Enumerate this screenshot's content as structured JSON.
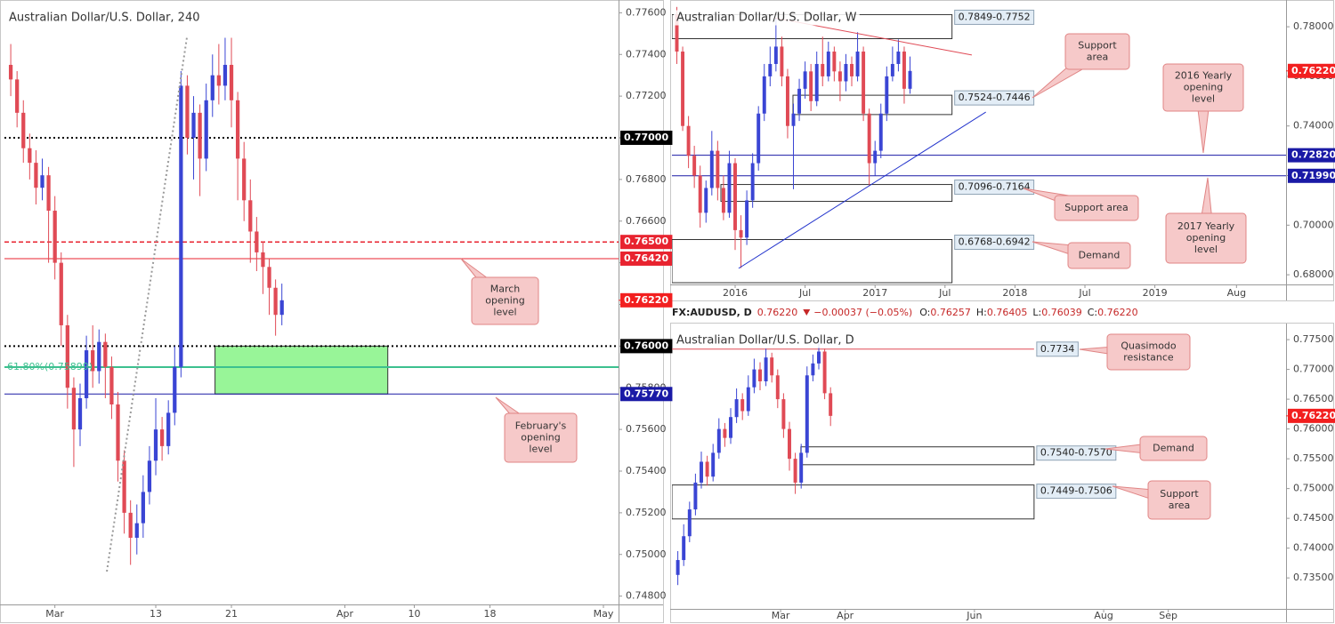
{
  "ticker": {
    "symbol": "FX:AUDUSD, D",
    "price": "0.76220",
    "change": "−0.00037 (−0.05%)",
    "ohlc": [
      {
        "key": "O:",
        "value": "0.76257"
      },
      {
        "key": "H:",
        "value": "0.76405"
      },
      {
        "key": "L:",
        "value": "0.76039"
      },
      {
        "key": "C:",
        "value": "0.76220"
      }
    ]
  },
  "chart_data": [
    {
      "type": "candlestick",
      "title": "Australian Dollar/U.S. Dollar, 240",
      "up_color": "#3a45d4",
      "down_color": "#e04a55",
      "x": [
        -3.5,
        -3,
        -2.5,
        -2,
        -1.5,
        -1,
        -0.5,
        0,
        0.5,
        1,
        1.5,
        2,
        2.5,
        3,
        3.5,
        4,
        4.5,
        5,
        5.5,
        6,
        6.5,
        7,
        7.5,
        8,
        8.5,
        9,
        9.5,
        10,
        10.5,
        11,
        11.5,
        12,
        12.5,
        13,
        13.5,
        14,
        14.5,
        15,
        15.5,
        16,
        16.5,
        17,
        17.5,
        18
      ],
      "open": [
        0.7735,
        0.7728,
        0.7712,
        0.7695,
        0.7688,
        0.7676,
        0.7682,
        0.7665,
        0.764,
        0.761,
        0.758,
        0.756,
        0.7575,
        0.7598,
        0.7588,
        0.7602,
        0.759,
        0.7572,
        0.7545,
        0.752,
        0.7508,
        0.7515,
        0.753,
        0.7545,
        0.756,
        0.7552,
        0.7568,
        0.759,
        0.7725,
        0.77,
        0.7712,
        0.769,
        0.7718,
        0.773,
        0.7725,
        0.7735,
        0.7718,
        0.769,
        0.767,
        0.7655,
        0.7645,
        0.7638,
        0.7628,
        0.7615
      ],
      "high": [
        0.7745,
        0.7732,
        0.7718,
        0.7702,
        0.7694,
        0.769,
        0.7686,
        0.7672,
        0.7645,
        0.7615,
        0.7585,
        0.7582,
        0.7605,
        0.761,
        0.7608,
        0.7606,
        0.7595,
        0.7578,
        0.755,
        0.7526,
        0.7524,
        0.7538,
        0.7552,
        0.7575,
        0.7566,
        0.7574,
        0.76,
        0.7732,
        0.773,
        0.772,
        0.7716,
        0.7726,
        0.774,
        0.7745,
        0.7748,
        0.7748,
        0.7722,
        0.7698,
        0.768,
        0.7662,
        0.765,
        0.7642,
        0.7632,
        0.763
      ],
      "low": [
        0.772,
        0.7705,
        0.7688,
        0.768,
        0.7668,
        0.767,
        0.764,
        0.7632,
        0.76,
        0.757,
        0.7542,
        0.7552,
        0.757,
        0.758,
        0.7582,
        0.7575,
        0.7565,
        0.7535,
        0.751,
        0.7495,
        0.75,
        0.7508,
        0.7524,
        0.7538,
        0.7545,
        0.7548,
        0.7562,
        0.7585,
        0.7692,
        0.768,
        0.7672,
        0.7684,
        0.771,
        0.7716,
        0.7718,
        0.7705,
        0.767,
        0.766,
        0.764,
        0.7636,
        0.7625,
        0.7615,
        0.7605,
        0.761
      ],
      "close": [
        0.7728,
        0.7712,
        0.7695,
        0.7688,
        0.7676,
        0.7682,
        0.7665,
        0.764,
        0.761,
        0.758,
        0.756,
        0.7575,
        0.7598,
        0.7588,
        0.7602,
        0.759,
        0.7572,
        0.7545,
        0.752,
        0.7508,
        0.7515,
        0.753,
        0.7545,
        0.756,
        0.7552,
        0.7568,
        0.759,
        0.7725,
        0.77,
        0.7712,
        0.769,
        0.7718,
        0.773,
        0.7725,
        0.7735,
        0.7718,
        0.769,
        0.767,
        0.7655,
        0.7645,
        0.7638,
        0.7628,
        0.7615,
        0.7622
      ],
      "xlim": [
        -4,
        44.7
      ],
      "xticks": [
        {
          "value": 0,
          "label": "Mar"
        },
        {
          "value": 8,
          "label": "13"
        },
        {
          "value": 14,
          "label": "21"
        },
        {
          "value": 23,
          "label": "Apr"
        },
        {
          "value": 28.5,
          "label": "10"
        },
        {
          "value": 34.5,
          "label": "18"
        },
        {
          "value": 43.5,
          "label": "May"
        }
      ],
      "ylim": [
        0.7476,
        0.7764
      ],
      "yticks": [
        {
          "value": 0.776,
          "label": "0.77600"
        },
        {
          "value": 0.774,
          "label": "0.77400"
        },
        {
          "value": 0.772,
          "label": "0.77200"
        },
        {
          "value": 0.77,
          "label": "0.77000"
        },
        {
          "value": 0.768,
          "label": "0.76800"
        },
        {
          "value": 0.766,
          "label": "0.76600"
        },
        {
          "value": 0.764,
          "label": "0.76400"
        },
        {
          "value": 0.762,
          "label": "0.76200"
        },
        {
          "value": 0.76,
          "label": "0.76000"
        },
        {
          "value": 0.758,
          "label": "0.75800"
        },
        {
          "value": 0.756,
          "label": "0.75600"
        },
        {
          "value": 0.754,
          "label": "0.75400"
        },
        {
          "value": 0.752,
          "label": "0.75200"
        },
        {
          "value": 0.75,
          "label": "0.75000"
        },
        {
          "value": 0.748,
          "label": "0.74800"
        }
      ],
      "zones": [
        {
          "high": 0.76,
          "low": 0.7577,
          "x": [
            12.7,
            26.4
          ],
          "color": "#98f598"
        }
      ],
      "levels": [
        {
          "value": 0.77,
          "label": "0.77000",
          "color": "#000000",
          "style": "dotted"
        },
        {
          "value": 0.765,
          "label": "0.76500",
          "color": "#e8232f",
          "style": "dashed"
        },
        {
          "value": 0.7642,
          "label": "0.76420",
          "color": "#e8232f",
          "style": "solid"
        },
        {
          "value": 0.76,
          "label": "0.76000",
          "color": "#000000",
          "style": "dotted"
        },
        {
          "value": 0.7577,
          "label": "0.75770",
          "color": "#1a1aa6",
          "style": "solid"
        }
      ],
      "fib": {
        "value": 0.75899,
        "label": "61.80%(0.75899)",
        "color": "#3cc08f"
      },
      "trendlines": [
        {
          "x": [
            4.12,
            10.47
          ],
          "y": [
            0.74918,
            0.77482
          ],
          "color": "#999999",
          "style": "dotted"
        }
      ],
      "last": {
        "value": 0.7622,
        "label": "0.76220",
        "color": "#f21f1f"
      },
      "callouts": [
        {
          "lines": [
            "March",
            "opening",
            "level"
          ]
        },
        {
          "lines": [
            "February's",
            "opening",
            "level"
          ]
        }
      ]
    },
    {
      "type": "candlestick",
      "title": "Australian Dollar/U.S. Dollar, W",
      "up_color": "#3a45d4",
      "down_color": "#e04a55",
      "x": [
        -5,
        -4.5,
        -4,
        -3.5,
        -3,
        -2.5,
        -2,
        -1.5,
        -1,
        -0.5,
        0,
        0.5,
        1,
        1.5,
        2,
        2.5,
        3,
        3.5,
        4,
        4.5,
        5,
        5.5,
        6,
        6.5,
        7,
        7.5,
        8,
        8.5,
        9,
        9.5,
        10,
        10.5,
        11,
        11.5,
        12,
        12.5,
        13,
        13.5,
        14,
        14.5,
        15
      ],
      "open": [
        0.785,
        0.77,
        0.74,
        0.728,
        0.72,
        0.705,
        0.715,
        0.73,
        0.715,
        0.705,
        0.725,
        0.698,
        0.695,
        0.71,
        0.725,
        0.745,
        0.76,
        0.765,
        0.772,
        0.76,
        0.74,
        0.745,
        0.755,
        0.762,
        0.75,
        0.765,
        0.76,
        0.77,
        0.762,
        0.758,
        0.765,
        0.76,
        0.77,
        0.745,
        0.725,
        0.73,
        0.745,
        0.76,
        0.765,
        0.77,
        0.755
      ],
      "high": [
        0.788,
        0.772,
        0.744,
        0.732,
        0.724,
        0.718,
        0.738,
        0.734,
        0.72,
        0.73,
        0.727,
        0.704,
        0.714,
        0.729,
        0.748,
        0.765,
        0.772,
        0.7835,
        0.776,
        0.763,
        0.749,
        0.759,
        0.766,
        0.765,
        0.77,
        0.776,
        0.774,
        0.772,
        0.766,
        0.769,
        0.768,
        0.7778,
        0.772,
        0.747,
        0.734,
        0.749,
        0.764,
        0.772,
        0.7749,
        0.772,
        0.768
      ],
      "low": [
        0.765,
        0.738,
        0.723,
        0.715,
        0.699,
        0.701,
        0.712,
        0.71,
        0.702,
        0.703,
        0.69,
        0.6827,
        0.692,
        0.707,
        0.722,
        0.742,
        0.756,
        0.762,
        0.756,
        0.735,
        0.7145,
        0.742,
        0.751,
        0.746,
        0.748,
        0.756,
        0.758,
        0.758,
        0.75,
        0.754,
        0.756,
        0.758,
        0.742,
        0.716,
        0.72,
        0.727,
        0.742,
        0.758,
        0.762,
        0.749,
        0.753
      ],
      "close": [
        0.77,
        0.74,
        0.728,
        0.72,
        0.705,
        0.715,
        0.73,
        0.715,
        0.705,
        0.725,
        0.698,
        0.695,
        0.71,
        0.725,
        0.745,
        0.76,
        0.765,
        0.772,
        0.76,
        0.74,
        0.745,
        0.755,
        0.762,
        0.75,
        0.765,
        0.76,
        0.77,
        0.762,
        0.758,
        0.765,
        0.76,
        0.77,
        0.745,
        0.725,
        0.73,
        0.745,
        0.76,
        0.765,
        0.77,
        0.755,
        0.7622
      ],
      "xlim": [
        -5.42,
        47.25
      ],
      "xticks": [
        {
          "value": 0,
          "label": "2016"
        },
        {
          "value": 6,
          "label": "Jul"
        },
        {
          "value": 12,
          "label": "2017"
        },
        {
          "value": 18,
          "label": "Jul"
        },
        {
          "value": 24,
          "label": "2018"
        },
        {
          "value": 30,
          "label": "Jul"
        },
        {
          "value": 36,
          "label": "2019"
        },
        {
          "value": 43,
          "label": "Aug"
        }
      ],
      "ylim": [
        0.6761,
        0.789
      ],
      "yticks": [
        {
          "value": 0.78,
          "label": "0.78000"
        },
        {
          "value": 0.76,
          "label": "0.76000"
        },
        {
          "value": 0.74,
          "label": "0.74000"
        },
        {
          "value": 0.72,
          "label": "0.72000"
        },
        {
          "value": 0.7,
          "label": "0.70000"
        },
        {
          "value": 0.68,
          "label": "0.68000"
        }
      ],
      "zones": [
        {
          "high": 0.7849,
          "low": 0.7752,
          "x": [
            -5.42,
            18.6
          ],
          "label": "0.7849-0.7752"
        },
        {
          "high": 0.7524,
          "low": 0.7446,
          "x": [
            4.96,
            18.6
          ],
          "label": "0.7524-0.7446"
        },
        {
          "high": 0.7164,
          "low": 0.7096,
          "x": [
            -1.22,
            18.6
          ],
          "label": "0.7096-0.7164"
        },
        {
          "high": 0.6942,
          "low": 0.6768,
          "x": [
            -5.42,
            18.6
          ],
          "label": "0.6768-0.6942"
        }
      ],
      "levels": [
        {
          "value": 0.7282,
          "label": "0.72820",
          "color": "#1a1aa6",
          "style": "solid"
        },
        {
          "value": 0.7199,
          "label": "0.71990",
          "color": "#1a1aa6",
          "style": "solid"
        }
      ],
      "trendlines": [
        {
          "x": [
            3.36,
            20.3
          ],
          "y": [
            0.7836,
            0.7686
          ],
          "color": "#e04a55",
          "style": "solid"
        },
        {
          "x": [
            0.3,
            21.5
          ],
          "y": [
            0.6826,
            0.7456
          ],
          "color": "#2233cc",
          "style": "solid"
        }
      ],
      "last": {
        "value": 0.7622,
        "label": "0.76220",
        "color": "#f21f1f"
      },
      "callouts": [
        {
          "lines": [
            "Support",
            "area"
          ]
        },
        {
          "lines": [
            "2016 Yearly",
            "opening",
            "level"
          ]
        },
        {
          "lines": [
            "2017 Yearly",
            "opening",
            "level"
          ]
        },
        {
          "lines": [
            "Support area"
          ]
        },
        {
          "lines": [
            "Demand"
          ]
        }
      ]
    },
    {
      "type": "candlestick",
      "title": "Australian Dollar/U.S. Dollar, D",
      "up_color": "#3a45d4",
      "down_color": "#e04a55",
      "x": [
        -35,
        -33,
        -31,
        -29,
        -27,
        -25,
        -23,
        -21,
        -19,
        -17,
        -15,
        -13,
        -11,
        -9,
        -7,
        -5,
        -3,
        -1,
        1,
        3,
        5,
        7,
        9,
        11,
        13,
        15,
        17
      ],
      "open": [
        0.7355,
        0.738,
        0.742,
        0.7465,
        0.751,
        0.7545,
        0.752,
        0.756,
        0.76,
        0.7585,
        0.762,
        0.765,
        0.763,
        0.767,
        0.77,
        0.768,
        0.772,
        0.769,
        0.765,
        0.76,
        0.755,
        0.751,
        0.756,
        0.769,
        0.771,
        0.773,
        0.766
      ],
      "high": [
        0.7395,
        0.744,
        0.7478,
        0.7525,
        0.7562,
        0.7555,
        0.7575,
        0.7618,
        0.761,
        0.7635,
        0.7668,
        0.766,
        0.769,
        0.7718,
        0.7712,
        0.7735,
        0.7728,
        0.77,
        0.766,
        0.7612,
        0.756,
        0.7575,
        0.7705,
        0.7725,
        0.7749,
        0.7735,
        0.767
      ],
      "low": [
        0.7338,
        0.737,
        0.741,
        0.7455,
        0.75,
        0.7505,
        0.7512,
        0.755,
        0.757,
        0.7575,
        0.761,
        0.7615,
        0.7622,
        0.766,
        0.7665,
        0.7672,
        0.7678,
        0.7635,
        0.7585,
        0.753,
        0.7491,
        0.75,
        0.7552,
        0.768,
        0.77,
        0.765,
        0.7605
      ],
      "close": [
        0.738,
        0.742,
        0.7465,
        0.751,
        0.7545,
        0.752,
        0.756,
        0.76,
        0.7585,
        0.762,
        0.765,
        0.763,
        0.767,
        0.77,
        0.768,
        0.772,
        0.769,
        0.765,
        0.76,
        0.755,
        0.751,
        0.756,
        0.769,
        0.771,
        0.773,
        0.766,
        0.7622
      ],
      "xlim": [
        -37,
        172.1
      ],
      "xticks": [
        {
          "value": 0,
          "label": "Mar"
        },
        {
          "value": 22,
          "label": "Apr"
        },
        {
          "value": 66,
          "label": "Jun"
        },
        {
          "value": 110,
          "label": "Aug"
        },
        {
          "value": 132,
          "label": "Sep"
        }
      ],
      "ylim": [
        0.7298,
        0.7771
      ],
      "yticks": [
        {
          "value": 0.775,
          "label": "0.77500"
        },
        {
          "value": 0.77,
          "label": "0.77000"
        },
        {
          "value": 0.765,
          "label": "0.76500"
        },
        {
          "value": 0.76,
          "label": "0.76000"
        },
        {
          "value": 0.755,
          "label": "0.75500"
        },
        {
          "value": 0.75,
          "label": "0.75000"
        },
        {
          "value": 0.745,
          "label": "0.74500"
        },
        {
          "value": 0.74,
          "label": "0.74000"
        },
        {
          "value": 0.735,
          "label": "0.73500"
        }
      ],
      "zones": [
        {
          "high": 0.757,
          "low": 0.754,
          "x": [
            6.9,
            86.3
          ],
          "label": "0.7540-0.7570"
        },
        {
          "high": 0.7506,
          "low": 0.7449,
          "x": [
            -37,
            86.3
          ],
          "label": "0.7449-0.7506"
        }
      ],
      "rays": [
        {
          "value": 0.7734,
          "label": "0.7734",
          "x": [
            -37,
            86.3
          ],
          "color": "#e04a55"
        }
      ],
      "last": {
        "value": 0.7622,
        "label": "0.76220",
        "color": "#f21f1f"
      },
      "callouts": [
        {
          "lines": [
            "Quasimodo",
            "resistance"
          ]
        },
        {
          "lines": [
            "Demand"
          ]
        },
        {
          "lines": [
            "Support",
            "area"
          ]
        }
      ]
    }
  ]
}
